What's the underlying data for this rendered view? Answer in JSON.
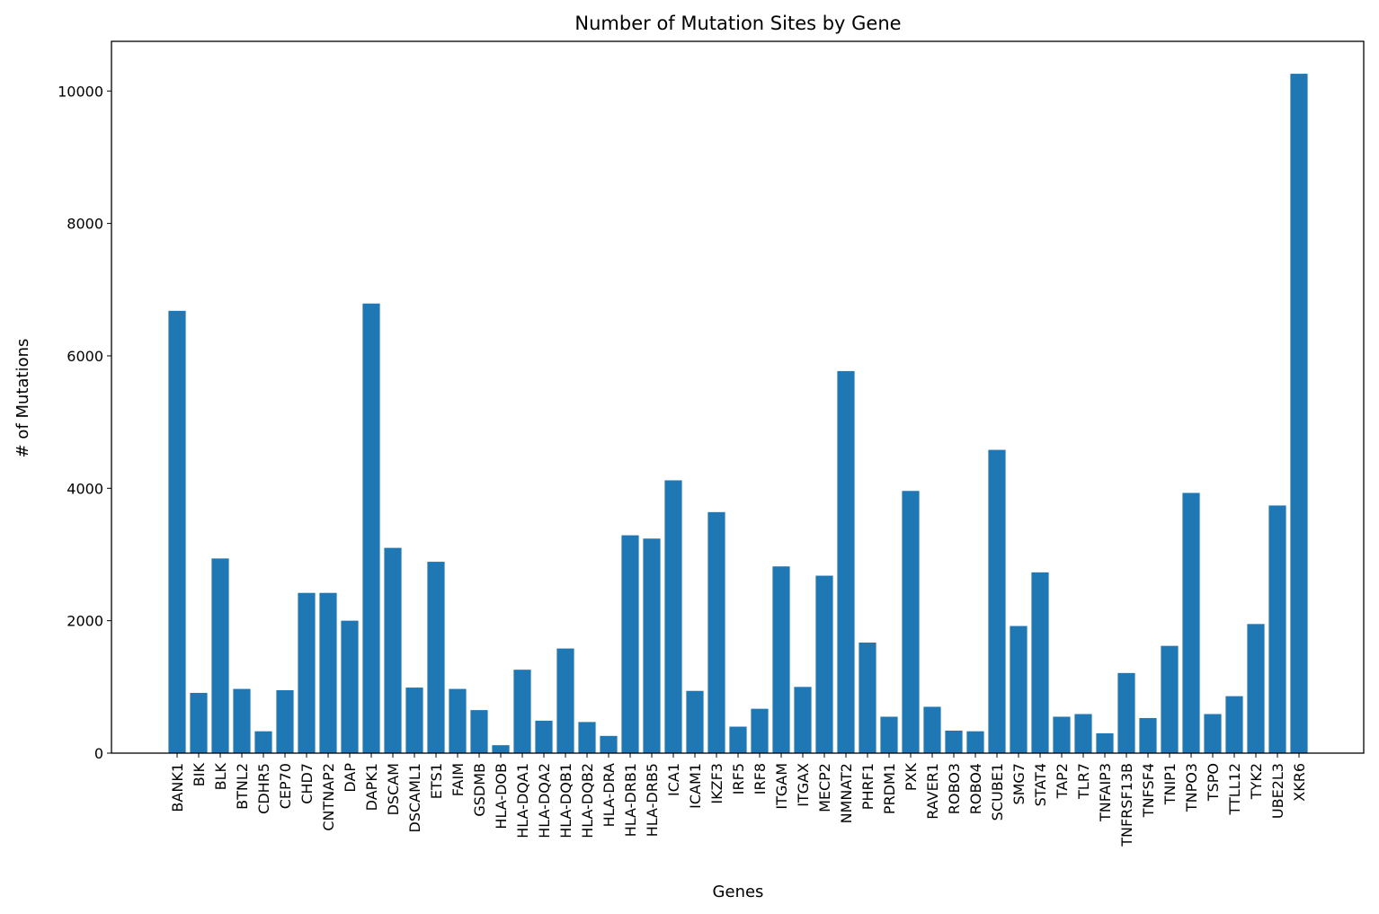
{
  "chart_data": {
    "type": "bar",
    "title": "Number of Mutation Sites by Gene",
    "xlabel": "Genes",
    "ylabel": "# of Mutations",
    "ylim": [
      0,
      10750
    ],
    "yticks": [
      0,
      2000,
      4000,
      6000,
      8000,
      10000
    ],
    "bar_color": "#1f77b4",
    "grid": false,
    "legend": "none",
    "categories": [
      "BANK1",
      "BIK",
      "BLK",
      "BTNL2",
      "CDHR5",
      "CEP70",
      "CHD7",
      "CNTNAP2",
      "DAP",
      "DAPK1",
      "DSCAM",
      "DSCAML1",
      "ETS1",
      "FAIM",
      "GSDMB",
      "HLA-DOB",
      "HLA-DQA1",
      "HLA-DQA2",
      "HLA-DQB1",
      "HLA-DQB2",
      "HLA-DRA",
      "HLA-DRB1",
      "HLA-DRB5",
      "ICA1",
      "ICAM1",
      "IKZF3",
      "IRF5",
      "IRF8",
      "ITGAM",
      "ITGAX",
      "MECP2",
      "NMNAT2",
      "PHRF1",
      "PRDM1",
      "PXK",
      "RAVER1",
      "ROBO3",
      "ROBO4",
      "SCUBE1",
      "SMG7",
      "STAT4",
      "TAP2",
      "TLR7",
      "TNFAIP3",
      "TNFRSF13B",
      "TNFSF4",
      "TNIP1",
      "TNPO3",
      "TSPO",
      "TTLL12",
      "TYK2",
      "UBE2L3",
      "XKR6"
    ],
    "values": [
      6680,
      910,
      2940,
      970,
      330,
      950,
      2420,
      2420,
      2000,
      6790,
      3100,
      990,
      2890,
      970,
      650,
      120,
      1260,
      490,
      1580,
      470,
      260,
      3290,
      3240,
      4120,
      940,
      3640,
      400,
      670,
      2820,
      1000,
      2680,
      5770,
      1670,
      550,
      3960,
      700,
      340,
      330,
      4580,
      1920,
      2730,
      550,
      590,
      300,
      1210,
      530,
      1620,
      3930,
      590,
      860,
      1950,
      3740,
      10260
    ]
  }
}
